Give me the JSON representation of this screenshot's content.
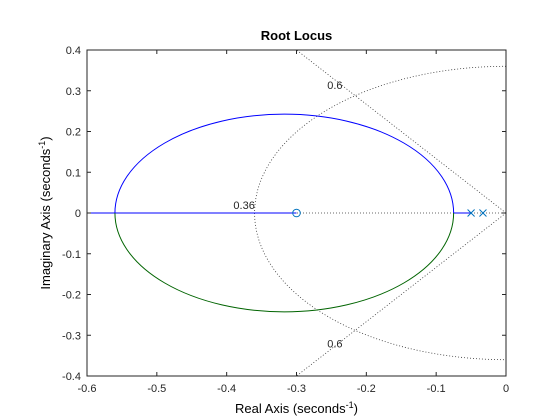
{
  "chart_data": {
    "type": "line",
    "title": "Root Locus",
    "xlabel": "Real Axis (seconds",
    "ylabel": "Imaginary Axis (seconds",
    "label_exponent": "-1",
    "xlim": [
      -0.6,
      0
    ],
    "ylim": [
      -0.4,
      0.4
    ],
    "xticks": [
      -0.6,
      -0.5,
      -0.4,
      -0.3,
      -0.2,
      -0.1,
      0
    ],
    "yticks": [
      -0.4,
      -0.3,
      -0.2,
      -0.1,
      0,
      0.1,
      0.2,
      0.3,
      0.4
    ],
    "xtick_labels": [
      "-0.6",
      "-0.5",
      "-0.4",
      "-0.3",
      "-0.2",
      "-0.1",
      "0"
    ],
    "ytick_labels": [
      "-0.4",
      "-0.3",
      "-0.2",
      "-0.1",
      "0",
      "0.1",
      "0.2",
      "0.3",
      "0.4"
    ],
    "grid": "sgrid (dotted damping line and natural-frequency arc)",
    "colors": {
      "branch1": "#0000ff",
      "branch2": "#006400",
      "grid": "#3a3a3a",
      "axes": "#262626",
      "marker": "#0072bd"
    },
    "locus": {
      "circle_center": -0.3175,
      "circle_radius": 0.2425,
      "real_axis_left_end": -0.6,
      "breakaway_left": -0.56,
      "breakaway_right": -0.075
    },
    "poles": [
      -0.05,
      -0.033
    ],
    "zeros": [
      -0.3
    ],
    "damping_line": {
      "zeta": 0.6,
      "labels": [
        "0.6",
        "0.6"
      ]
    },
    "frequency_arc": {
      "wn": 0.36,
      "label": "0.36"
    }
  }
}
